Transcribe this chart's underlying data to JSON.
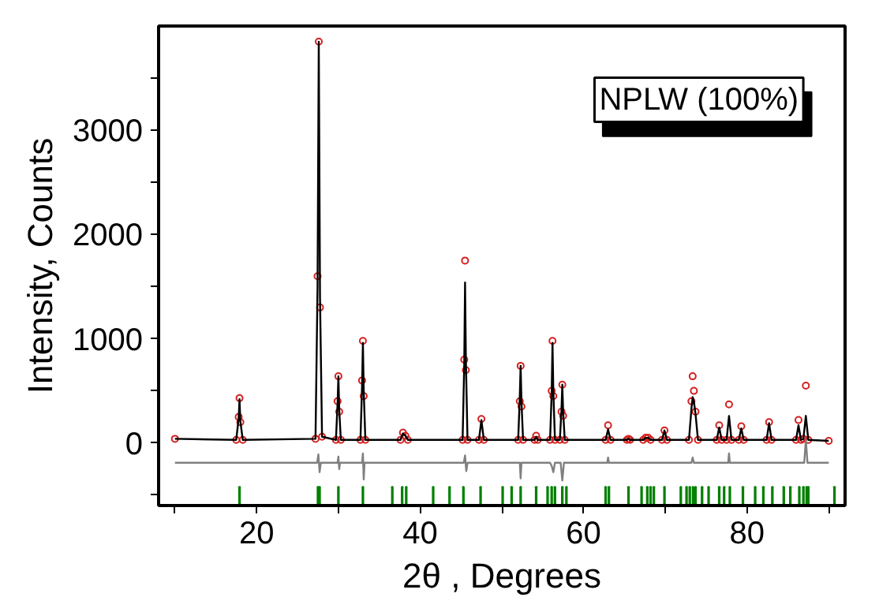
{
  "chart_data": {
    "type": "scatter",
    "xlabel": "2θ , Degrees",
    "ylabel": "Intensity, Counts",
    "annotations": [
      "NPLW (100%)"
    ],
    "xlim": [
      8,
      92
    ],
    "ylim": [
      -600,
      4000
    ],
    "xticks": [
      {
        "value": 10,
        "label": null
      },
      20,
      {
        "value": 30,
        "label": null
      },
      40,
      {
        "value": 50,
        "label": null
      },
      60,
      {
        "value": 70,
        "label": null
      },
      80,
      {
        "value": 90,
        "label": null
      }
    ],
    "yticks": [
      {
        "value": -500,
        "label": null
      },
      0,
      {
        "value": 500,
        "label": null
      },
      1000,
      {
        "value": 1500,
        "label": null
      },
      2000,
      {
        "value": 2500,
        "label": null
      },
      3000,
      {
        "value": 3500,
        "label": null
      }
    ],
    "grid": false,
    "x": [
      10,
      17.5,
      17.8,
      17.9,
      18.0,
      18.3,
      27.2,
      27.45,
      27.6,
      27.75,
      28.0,
      29.7,
      29.9,
      30.0,
      30.1,
      30.3,
      32.7,
      32.9,
      33.0,
      33.1,
      33.3,
      37.6,
      37.9,
      38.2,
      38.5,
      45.2,
      45.4,
      45.5,
      45.6,
      45.8,
      47.2,
      47.5,
      47.8,
      52.0,
      52.2,
      52.3,
      52.4,
      52.6,
      54.0,
      54.2,
      54.4,
      55.9,
      56.1,
      56.2,
      56.3,
      56.5,
      57.1,
      57.3,
      57.4,
      57.5,
      57.7,
      62.7,
      63.0,
      63.3,
      65.3,
      65.5,
      65.7,
      67.3,
      67.6,
      67.9,
      68.2,
      69.6,
      69.9,
      70.2,
      72.9,
      73.2,
      73.35,
      73.5,
      73.7,
      74.0,
      76.3,
      76.6,
      76.9,
      77.5,
      77.8,
      78.1,
      79.0,
      79.3,
      79.6,
      82.4,
      82.7,
      83.0,
      86.0,
      86.3,
      86.6,
      86.9,
      87.2,
      87.5,
      90
    ],
    "series": [
      {
        "marker": "circle",
        "color": "#d42020",
        "values": [
          40,
          30,
          250,
          430,
          200,
          30,
          40,
          1600,
          3850,
          1300,
          60,
          30,
          400,
          640,
          300,
          30,
          30,
          600,
          980,
          450,
          30,
          30,
          100,
          70,
          30,
          30,
          800,
          1750,
          700,
          30,
          30,
          230,
          30,
          30,
          400,
          740,
          350,
          30,
          30,
          70,
          30,
          30,
          500,
          980,
          450,
          30,
          30,
          300,
          560,
          260,
          30,
          30,
          170,
          30,
          30,
          40,
          30,
          30,
          50,
          50,
          30,
          30,
          120,
          30,
          30,
          400,
          640,
          500,
          300,
          30,
          30,
          170,
          30,
          30,
          370,
          30,
          30,
          160,
          30,
          30,
          200,
          30,
          30,
          220,
          30,
          40,
          550,
          30,
          20
        ]
      },
      {
        "type": "line",
        "line_style": "solid",
        "color": "#000000",
        "values": [
          40,
          30,
          240,
          420,
          210,
          30,
          40,
          1500,
          3850,
          1400,
          60,
          30,
          380,
          640,
          320,
          30,
          30,
          550,
          960,
          500,
          30,
          30,
          90,
          70,
          30,
          30,
          750,
          1540,
          800,
          30,
          30,
          220,
          30,
          30,
          450,
          740,
          400,
          30,
          30,
          60,
          30,
          30,
          480,
          960,
          500,
          30,
          30,
          320,
          560,
          300,
          30,
          30,
          130,
          30,
          30,
          40,
          30,
          30,
          50,
          50,
          30,
          30,
          120,
          30,
          30,
          330,
          440,
          400,
          280,
          30,
          30,
          150,
          30,
          30,
          260,
          30,
          30,
          140,
          30,
          30,
          190,
          30,
          30,
          170,
          30,
          40,
          260,
          30,
          20
        ]
      },
      {
        "type": "line",
        "line_style": "solid",
        "color": "#808080",
        "x": [
          10,
          27.4,
          27.55,
          27.7,
          27.85,
          29.9,
          30.0,
          30.1,
          30.2,
          32.9,
          33.0,
          33.1,
          33.2,
          45.35,
          45.5,
          45.65,
          45.8,
          52.2,
          52.3,
          52.4,
          55.9,
          56.1,
          56.3,
          56.5,
          57.2,
          57.4,
          57.6,
          62.9,
          63.0,
          63.1,
          73.2,
          73.35,
          73.5,
          77.7,
          77.8,
          77.9,
          87.0,
          87.2,
          87.4,
          90
        ],
        "values": [
          -190,
          -190,
          -110,
          -280,
          -190,
          -190,
          -130,
          -250,
          -190,
          -190,
          -100,
          -350,
          -190,
          -190,
          -120,
          -270,
          -190,
          -190,
          -340,
          -190,
          -190,
          -220,
          -280,
          -190,
          -190,
          -360,
          -190,
          -190,
          -140,
          -190,
          -190,
          -140,
          -190,
          -190,
          -100,
          -190,
          -190,
          30,
          -190,
          -190
        ]
      },
      {
        "type": "bar",
        "color": "#008000",
        "x": [
          17.9,
          27.5,
          27.7,
          30.0,
          33.0,
          36.6,
          37.8,
          38.3,
          41.6,
          43.6,
          45.3,
          47.4,
          50.1,
          51.2,
          52.3,
          54.2,
          55.6,
          56.1,
          56.5,
          57.4,
          57.9,
          62.7,
          63.1,
          65.5,
          67.1,
          67.8,
          68.2,
          68.6,
          69.9,
          71.9,
          72.6,
          73.0,
          73.4,
          73.7,
          74.5,
          75.3,
          76.6,
          77.2,
          77.9,
          79.5,
          81.0,
          82.0,
          83.1,
          84.5,
          85.3,
          86.4,
          86.9,
          87.3,
          87.5,
          90.7
        ],
        "base": [
          -580,
          -580,
          -580,
          -580,
          -580,
          -580,
          -580,
          -580,
          -580,
          -580,
          -580,
          -580,
          -580,
          -580,
          -580,
          -580,
          -580,
          -580,
          -580,
          -580,
          -580,
          -580,
          -580,
          -580,
          -580,
          -580,
          -580,
          -580,
          -580,
          -580,
          -580,
          -580,
          -580,
          -580,
          -580,
          -580,
          -580,
          -580,
          -580,
          -580,
          -580,
          -580,
          -580,
          -580,
          -580,
          -580,
          -580,
          -580,
          -580,
          -580
        ],
        "values": [
          160,
          160,
          160,
          160,
          160,
          160,
          160,
          160,
          160,
          160,
          160,
          160,
          160,
          160,
          160,
          160,
          160,
          160,
          160,
          160,
          160,
          160,
          160,
          160,
          160,
          160,
          160,
          160,
          160,
          160,
          160,
          160,
          160,
          160,
          160,
          160,
          160,
          160,
          160,
          160,
          160,
          160,
          160,
          160,
          160,
          160,
          160,
          160,
          160,
          160
        ]
      }
    ]
  }
}
